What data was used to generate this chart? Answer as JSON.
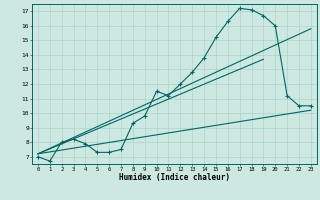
{
  "title": "",
  "xlabel": "Humidex (Indice chaleur)",
  "bg_color": "#cce8e0",
  "line_color": "#006666",
  "grid_color": "#aad4cc",
  "xlim": [
    -0.5,
    23.5
  ],
  "ylim": [
    6.5,
    17.5
  ],
  "xticks": [
    0,
    1,
    2,
    3,
    4,
    5,
    6,
    7,
    8,
    9,
    10,
    11,
    12,
    13,
    14,
    15,
    16,
    17,
    18,
    19,
    20,
    21,
    22,
    23
  ],
  "yticks": [
    7,
    8,
    9,
    10,
    11,
    12,
    13,
    14,
    15,
    16,
    17
  ],
  "main_curve_x": [
    0,
    1,
    2,
    3,
    4,
    5,
    6,
    7,
    8,
    9,
    10,
    11,
    12,
    13,
    14,
    15,
    16,
    17,
    18,
    19,
    20,
    21,
    22,
    23
  ],
  "main_curve_y": [
    7.0,
    6.7,
    8.0,
    8.2,
    7.9,
    7.3,
    7.3,
    7.5,
    9.3,
    9.8,
    11.5,
    11.2,
    12.0,
    12.8,
    13.8,
    15.2,
    16.3,
    17.2,
    17.1,
    16.7,
    16.0,
    11.2,
    10.5,
    10.5
  ],
  "line1_x": [
    0,
    23
  ],
  "line1_y": [
    7.2,
    15.8
  ],
  "line2_x": [
    0,
    23
  ],
  "line2_y": [
    7.2,
    10.2
  ],
  "line3_x": [
    0,
    19
  ],
  "line3_y": [
    7.2,
    13.7
  ]
}
